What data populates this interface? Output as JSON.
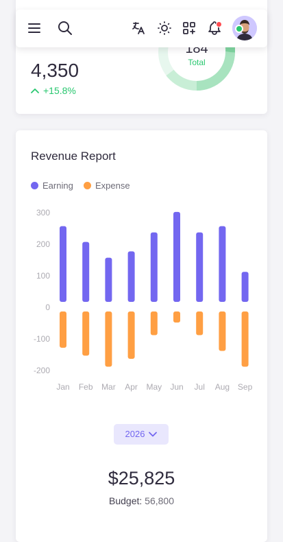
{
  "stats": {
    "value": "4,350",
    "trend": "+15.8%",
    "donut_value": "184",
    "donut_label": "Total"
  },
  "revenue": {
    "title": "Revenue Report",
    "legend": [
      {
        "label": "Earning",
        "color": "#7367f0"
      },
      {
        "label": "Expense",
        "color": "#ff9f43"
      }
    ],
    "year": "2026",
    "budget_amount": "$25,825",
    "budget_label": "Budget:",
    "budget_value": "56,800"
  },
  "icons": [
    "menu-icon",
    "search-icon",
    "translate-icon",
    "sun-icon",
    "grid-add-icon",
    "bell-icon",
    "chevron-down-icon",
    "arrow-up-icon"
  ],
  "colors": {
    "primary": "#7367f0",
    "warning": "#ff9f43",
    "success": "#28c76f"
  },
  "chart_data": {
    "type": "bar",
    "categories": [
      "Jan",
      "Feb",
      "Mar",
      "Apr",
      "May",
      "Jun",
      "Jul",
      "Aug",
      "Sep"
    ],
    "series": [
      {
        "name": "Earning",
        "values": [
          240,
          190,
          140,
          160,
          220,
          285,
          220,
          240,
          95
        ]
      },
      {
        "name": "Expense",
        "values": [
          -115,
          -140,
          -175,
          -150,
          -75,
          -35,
          -75,
          -125,
          -175
        ]
      }
    ],
    "y_ticks": [
      "300",
      "200",
      "100",
      "0",
      "-100",
      "-200"
    ],
    "ylim": [
      -200,
      300
    ],
    "grid": false
  }
}
